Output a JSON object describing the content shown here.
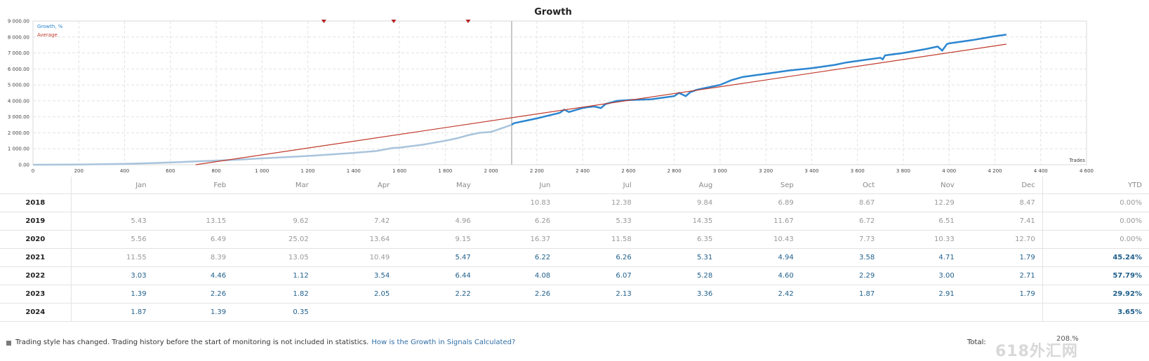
{
  "chart_data": {
    "type": "line",
    "title": "Growth",
    "xlabel": "Trades",
    "ylabel": "",
    "xlim": [
      0,
      4600
    ],
    "ylim": [
      0,
      9000
    ],
    "x_ticks": [
      "0",
      "200",
      "400",
      "600",
      "800",
      "1 000",
      "1 200",
      "1 400",
      "1 600",
      "1 800",
      "2 000",
      "2 200",
      "2 400",
      "2 600",
      "2 800",
      "3 000",
      "3 200",
      "3 400",
      "3 600",
      "3 800",
      "4 000",
      "4 200",
      "4 400",
      "4 600"
    ],
    "y_ticks": [
      "0.00",
      "1 000.00",
      "2 000.00",
      "3 000.00",
      "4 000.00",
      "5 000.00",
      "6 000.00",
      "7 000.00",
      "8 000.00",
      "9 000.00"
    ],
    "grid": true,
    "legend_position": "top-left",
    "monitoring_start_x": 2090,
    "markers_x": [
      1270,
      1575,
      1900
    ],
    "series": [
      {
        "name": "Growth, %",
        "color": "#2c86d0",
        "history_color": "#a9c4dc",
        "x": [
          0,
          100,
          200,
          300,
          400,
          500,
          600,
          700,
          800,
          900,
          1000,
          1100,
          1200,
          1300,
          1400,
          1500,
          1570,
          1600,
          1700,
          1800,
          1850,
          1900,
          1950,
          2000,
          2050,
          2090,
          2100,
          2200,
          2300,
          2320,
          2340,
          2400,
          2420,
          2450,
          2480,
          2500,
          2550,
          2600,
          2700,
          2800,
          2820,
          2850,
          2870,
          2900,
          3000,
          3050,
          3100,
          3200,
          3300,
          3400,
          3500,
          3550,
          3600,
          3700,
          3710,
          3720,
          3800,
          3900,
          3950,
          3970,
          3990,
          4000,
          4100,
          4200,
          4250
        ],
        "y": [
          0,
          5,
          12,
          30,
          55,
          90,
          140,
          200,
          260,
          320,
          400,
          470,
          550,
          640,
          740,
          860,
          1050,
          1070,
          1250,
          1500,
          1650,
          1850,
          2000,
          2050,
          2300,
          2500,
          2600,
          2900,
          3250,
          3450,
          3300,
          3550,
          3600,
          3650,
          3550,
          3800,
          4000,
          4050,
          4100,
          4300,
          4500,
          4300,
          4550,
          4700,
          5000,
          5300,
          5500,
          5700,
          5900,
          6050,
          6250,
          6400,
          6500,
          6700,
          6600,
          6850,
          7000,
          7250,
          7400,
          7150,
          7550,
          7600,
          7800,
          8050,
          8150
        ]
      },
      {
        "name": "Average",
        "color": "#c0392b",
        "x": [
          710,
          4250
        ],
        "y": [
          0,
          7550
        ]
      }
    ]
  },
  "table": {
    "columns": [
      "",
      "Jan",
      "Feb",
      "Mar",
      "Apr",
      "May",
      "Jun",
      "Jul",
      "Aug",
      "Sep",
      "Oct",
      "Nov",
      "Dec",
      "YTD"
    ],
    "rows": [
      {
        "year": "2018",
        "values": [
          "",
          "",
          "",
          "",
          "",
          "10.83",
          "12.38",
          "9.84",
          "6.89",
          "8.67",
          "12.29",
          "8.47"
        ],
        "ytd": "0.00%",
        "pos_from": 99
      },
      {
        "year": "2019",
        "values": [
          "5.43",
          "13.15",
          "9.62",
          "7.42",
          "4.96",
          "6.26",
          "5.33",
          "14.35",
          "11.67",
          "6.72",
          "6.51",
          "7.41"
        ],
        "ytd": "0.00%",
        "pos_from": 99
      },
      {
        "year": "2020",
        "values": [
          "5.56",
          "6.49",
          "25.02",
          "13.64",
          "9.15",
          "16.37",
          "11.58",
          "6.35",
          "10.43",
          "7.73",
          "10.33",
          "12.70"
        ],
        "ytd": "0.00%",
        "pos_from": 99
      },
      {
        "year": "2021",
        "values": [
          "11.55",
          "8.39",
          "13.05",
          "10.49",
          "5.47",
          "6.22",
          "6.26",
          "5.31",
          "4.94",
          "3.58",
          "4.71",
          "1.79"
        ],
        "ytd": "45.24%",
        "pos_from": 4
      },
      {
        "year": "2022",
        "values": [
          "3.03",
          "4.46",
          "1.12",
          "3.54",
          "6.44",
          "4.08",
          "6.07",
          "5.28",
          "4.60",
          "2.29",
          "3.00",
          "2.71"
        ],
        "ytd": "57.79%",
        "pos_from": 0
      },
      {
        "year": "2023",
        "values": [
          "1.39",
          "2.26",
          "1.82",
          "2.05",
          "2.22",
          "2.26",
          "2.13",
          "3.36",
          "2.42",
          "1.87",
          "2.91",
          "1.79"
        ],
        "ytd": "29.92%",
        "pos_from": 0
      },
      {
        "year": "2024",
        "values": [
          "1.87",
          "1.39",
          "0.35",
          "",
          "",
          "",
          "",
          "",
          "",
          "",
          "",
          ""
        ],
        "ytd": "3.65%",
        "pos_from": 0
      }
    ]
  },
  "footer": {
    "note": "Trading style has changed. Trading history before the start of monitoring is not included in statistics.",
    "link": "How is the Growth in Signals Calculated?",
    "total_label": "Total:",
    "total_value": "208.%"
  },
  "watermark": "618外汇网"
}
